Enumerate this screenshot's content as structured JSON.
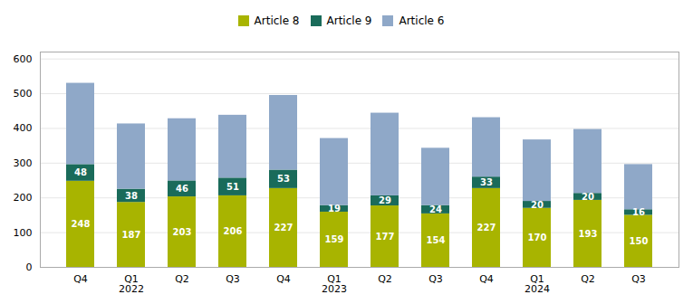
{
  "chart_data": {
    "type": "bar",
    "stacked": true,
    "categories": [
      "Q4",
      "Q1\n2022",
      "Q2",
      "Q3",
      "Q4",
      "Q1\n2023",
      "Q2",
      "Q3",
      "Q4",
      "Q1\n2024",
      "Q2",
      "Q3"
    ],
    "series": [
      {
        "name": "Article 8",
        "color": "#a8b400",
        "data_labels": true,
        "values": [
          248,
          187,
          203,
          206,
          227,
          159,
          177,
          154,
          227,
          170,
          193,
          150
        ]
      },
      {
        "name": "Article 9",
        "color": "#1a6b5a",
        "data_labels": true,
        "values": [
          48,
          38,
          46,
          51,
          53,
          19,
          29,
          24,
          33,
          20,
          20,
          16
        ]
      },
      {
        "name": "Article 6",
        "color": "#8fa8c8",
        "data_labels": false,
        "values": [
          234,
          188,
          179,
          181,
          215,
          193,
          238,
          165,
          171,
          177,
          184,
          130
        ]
      }
    ],
    "ylim": [
      0,
      620
    ],
    "yticks": [
      0,
      100,
      200,
      300,
      400,
      500,
      600
    ],
    "grid": true,
    "legend": "top"
  }
}
